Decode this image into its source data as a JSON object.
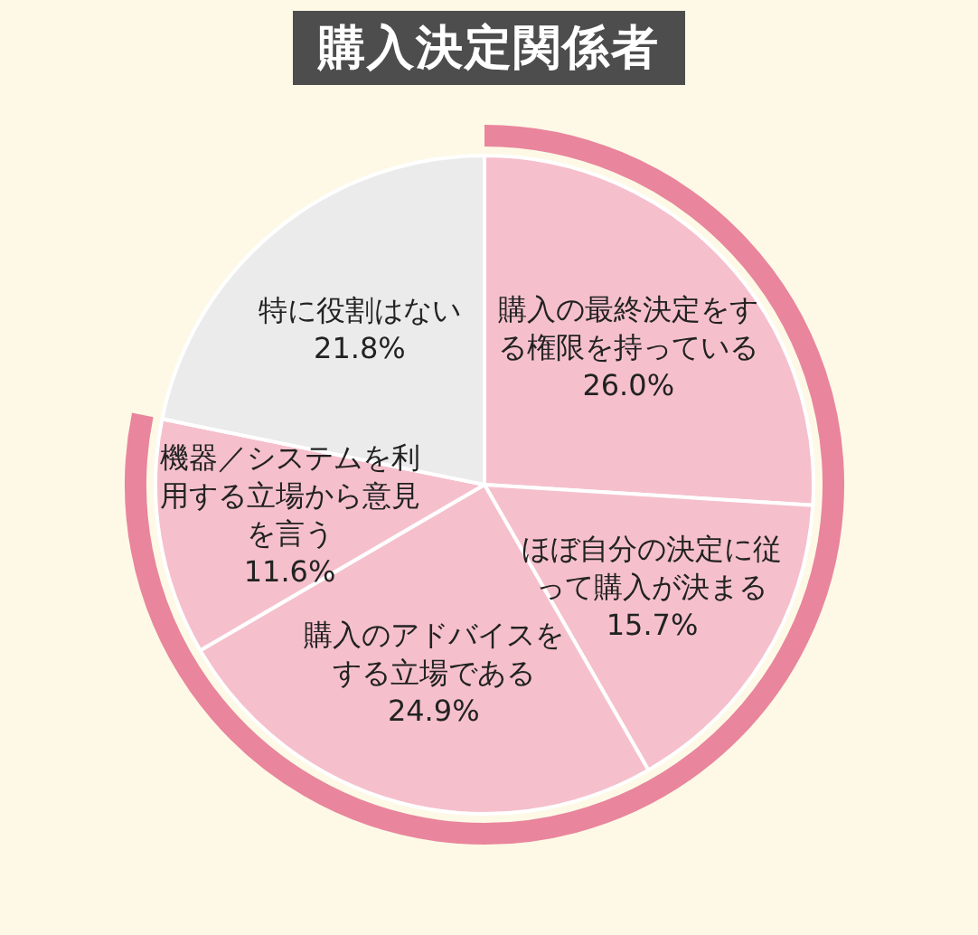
{
  "chart_data": {
    "type": "pie",
    "title": "購入決定関係者",
    "categories": [
      "購入の最終決定をする権限を持っている",
      "ほぼ自分の決定に従って購入が決まる",
      "購入のアドバイスをする立場である",
      "機器／システムを利用する立場から意見を言う",
      "特に役割はない"
    ],
    "values": [
      26.0,
      15.7,
      24.9,
      11.6,
      21.8
    ],
    "value_labels": [
      "26.0%",
      "15.7%",
      "24.9%",
      "11.6%",
      "21.8%"
    ],
    "colors": [
      "#f5c0cc",
      "#f5c0cc",
      "#f5c0cc",
      "#f5c0cc",
      "#ebebeb"
    ],
    "legend": false
  }
}
